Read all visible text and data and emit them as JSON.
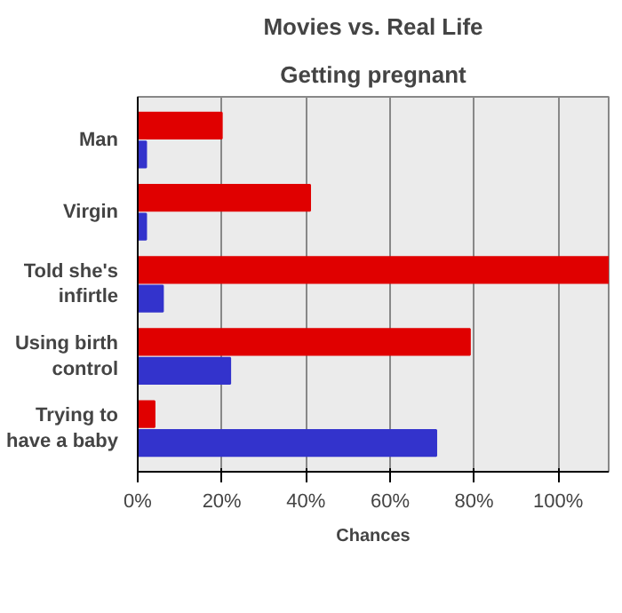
{
  "chart_data": {
    "type": "bar",
    "orientation": "horizontal",
    "title": "Movies vs. Real Life",
    "subtitle": "Getting pregnant",
    "xlabel": "Chances",
    "categories": [
      "Man",
      "Virgin",
      "Told she's infirtle",
      "Using birth control",
      "Trying to have a baby"
    ],
    "series": [
      {
        "color": "#e00000",
        "values": [
          20,
          41,
          112,
          79,
          4
        ]
      },
      {
        "color": "#3333cc",
        "values": [
          2,
          2,
          6,
          22,
          71
        ]
      }
    ],
    "xlim": [
      0,
      112
    ],
    "xticks": [
      {
        "value": 0,
        "label": "0%"
      },
      {
        "value": 20,
        "label": "20%"
      },
      {
        "value": 40,
        "label": "40%"
      },
      {
        "value": 60,
        "label": "60%"
      },
      {
        "value": 80,
        "label": "80%"
      },
      {
        "value": 100,
        "label": "100%"
      }
    ],
    "grid": "x"
  }
}
